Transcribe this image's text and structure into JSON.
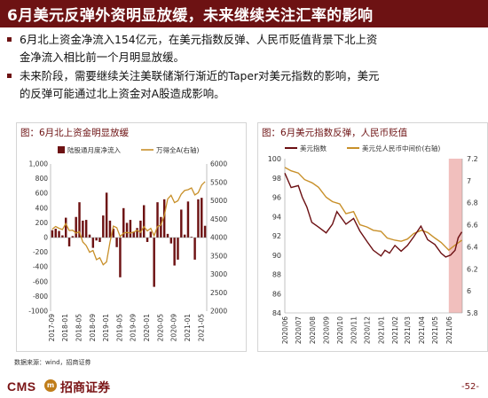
{
  "title": "6月美元反弹外资明显放缓，未来继续关注汇率的影响",
  "paragraphs": [
    [
      "6月北上资金净流入154亿元，在美元指数反弹、人民币贬值背景下北上资",
      "金净流入相比前一个月明显放缓。"
    ],
    [
      "未来阶段，需要继续关注美联储渐行渐近的Taper对美元指数的影响，美元",
      "的反弹可能通过北上资金对A股造成影响。"
    ]
  ],
  "source": "数据来源：wind，招商证券",
  "footer": {
    "logo_text": "CMS",
    "logo_mark": "m",
    "company": "招商证券",
    "page": "-52-"
  },
  "colors": {
    "brand": "#6d1213",
    "bar": "#6d1213",
    "line_gold": "#c8902a",
    "line_red": "#6b0f12",
    "shade": "#eeb4b2"
  },
  "chart_data": [
    {
      "panel_title": "图：6月北上资金明显放缓",
      "type": "bar+line",
      "legend": [
        "陆股通月度净流入",
        "万得全A(右轴)"
      ],
      "x_tick_labels": [
        "2017-09",
        "2018-01",
        "2018-05",
        "2018-09",
        "2019-01",
        "2019-05",
        "2019-09",
        "2020-01",
        "2020-05",
        "2020-09",
        "2021-01",
        "2021-05"
      ],
      "y_left": {
        "ticks": [
          "1,000",
          "800",
          "600",
          "400",
          "200",
          "0",
          "-200",
          "-400",
          "-600",
          "-800",
          "-1000"
        ],
        "lim": [
          -1000,
          1000
        ]
      },
      "y_right": {
        "ticks": [
          "6000",
          "5500",
          "5000",
          "4500",
          "4000",
          "3500",
          "3000",
          "2500",
          "2000"
        ],
        "lim": [
          2000,
          6000
        ]
      },
      "months": [
        "2017-09",
        "2017-10",
        "2017-11",
        "2017-12",
        "2018-01",
        "2018-02",
        "2018-03",
        "2018-04",
        "2018-05",
        "2018-06",
        "2018-07",
        "2018-08",
        "2018-09",
        "2018-10",
        "2018-11",
        "2018-12",
        "2019-01",
        "2019-02",
        "2019-03",
        "2019-04",
        "2019-05",
        "2019-06",
        "2019-07",
        "2019-08",
        "2019-09",
        "2019-10",
        "2019-11",
        "2019-12",
        "2020-01",
        "2020-02",
        "2020-03",
        "2020-04",
        "2020-05",
        "2020-06",
        "2020-07",
        "2020-08",
        "2020-09",
        "2020-10",
        "2020-11",
        "2020-12",
        "2021-01",
        "2021-02",
        "2021-03",
        "2021-04",
        "2021-05",
        "2021-06"
      ],
      "series": [
        {
          "name": "陆股通月度净流入",
          "kind": "bar",
          "values": [
            100,
            120,
            90,
            30,
            270,
            -120,
            20,
            280,
            480,
            230,
            240,
            40,
            -140,
            -40,
            -60,
            300,
            610,
            230,
            120,
            -130,
            -540,
            400,
            200,
            240,
            80,
            130,
            230,
            440,
            -60,
            80,
            -670,
            480,
            280,
            520,
            50,
            -80,
            -380,
            -300,
            380,
            40,
            490,
            10,
            -300,
            520,
            540,
            160
          ]
        },
        {
          "name": "万得全A(右轴)",
          "kind": "line",
          "axis": "right",
          "values": [
            4230,
            4300,
            4250,
            4220,
            4380,
            4190,
            4200,
            4120,
            4160,
            3880,
            3780,
            3600,
            3650,
            3400,
            3450,
            3260,
            3340,
            3880,
            4310,
            4270,
            4030,
            4120,
            4140,
            4120,
            4150,
            4200,
            4140,
            4300,
            4180,
            4250,
            4050,
            4300,
            4340,
            4600,
            5050,
            5150,
            4950,
            5000,
            5180,
            5280,
            5300,
            5350,
            5160,
            5220,
            5430,
            5520
          ]
        }
      ]
    },
    {
      "panel_title": "图：6月美元指数反弹，人民币贬值",
      "type": "line",
      "legend": [
        "美元指数",
        "美元兑人民币中间价(右轴)"
      ],
      "x_tick_labels": [
        "2020/06",
        "2020/07",
        "2020/08",
        "2020/09",
        "2020/10",
        "2020/11",
        "2020/12",
        "2021/01",
        "2021/02",
        "2021/03",
        "2021/04",
        "2021/05",
        "2021/06"
      ],
      "y_left": {
        "ticks": [
          "100",
          "98",
          "96",
          "94",
          "92",
          "90",
          "88",
          "86",
          "84"
        ],
        "lim": [
          84,
          100
        ]
      },
      "y_right": {
        "ticks": [
          "7.2",
          "7",
          "6.8",
          "6.6",
          "6.4",
          "6.2",
          "6",
          "5.8"
        ],
        "lim": [
          5.8,
          7.2
        ]
      },
      "shaded_range": [
        "2021/06",
        "2021/06 end"
      ],
      "series": [
        {
          "name": "美元指数",
          "x": [
            "2020/06/01",
            "2020/06/15",
            "2020/07/01",
            "2020/07/10",
            "2020/07/20",
            "2020/07/31",
            "2020/08/15",
            "2020/09/01",
            "2020/09/15",
            "2020/09/25",
            "2020/10/15",
            "2020/11/01",
            "2020/11/15",
            "2020/12/01",
            "2020/12/15",
            "2021/01/01",
            "2021/01/10",
            "2021/01/20",
            "2021/02/01",
            "2021/02/15",
            "2021/03/01",
            "2021/03/15",
            "2021/03/31",
            "2021/04/15",
            "2021/05/01",
            "2021/05/15",
            "2021/05/25",
            "2021/06/05",
            "2021/06/15",
            "2021/06/22",
            "2021/06/30"
          ],
          "y": [
            98.5,
            97.0,
            97.2,
            96.0,
            95.0,
            93.4,
            92.9,
            92.3,
            93.2,
            94.5,
            93.2,
            93.8,
            92.5,
            91.4,
            90.5,
            89.9,
            90.5,
            90.2,
            91.0,
            90.4,
            91.0,
            91.9,
            93.0,
            91.6,
            91.1,
            90.2,
            89.8,
            90.0,
            90.5,
            91.8,
            92.4
          ]
        },
        {
          "name": "美元兑人民币中间价(右轴)",
          "x": [
            "2020/06/01",
            "2020/06/15",
            "2020/07/01",
            "2020/07/15",
            "2020/08/01",
            "2020/08/15",
            "2020/09/01",
            "2020/09/15",
            "2020/10/01",
            "2020/10/15",
            "2020/11/01",
            "2020/11/15",
            "2020/12/01",
            "2020/12/15",
            "2021/01/01",
            "2021/01/15",
            "2021/02/01",
            "2021/02/15",
            "2021/03/01",
            "2021/03/15",
            "2021/04/01",
            "2021/04/15",
            "2021/05/01",
            "2021/05/15",
            "2021/06/01",
            "2021/06/10",
            "2021/06/20",
            "2021/06/30"
          ],
          "y": [
            7.12,
            7.09,
            7.07,
            7.01,
            6.98,
            6.94,
            6.85,
            6.81,
            6.79,
            6.7,
            6.72,
            6.6,
            6.58,
            6.55,
            6.54,
            6.48,
            6.46,
            6.45,
            6.47,
            6.52,
            6.55,
            6.53,
            6.48,
            6.44,
            6.37,
            6.4,
            6.43,
            6.46
          ]
        }
      ]
    }
  ]
}
